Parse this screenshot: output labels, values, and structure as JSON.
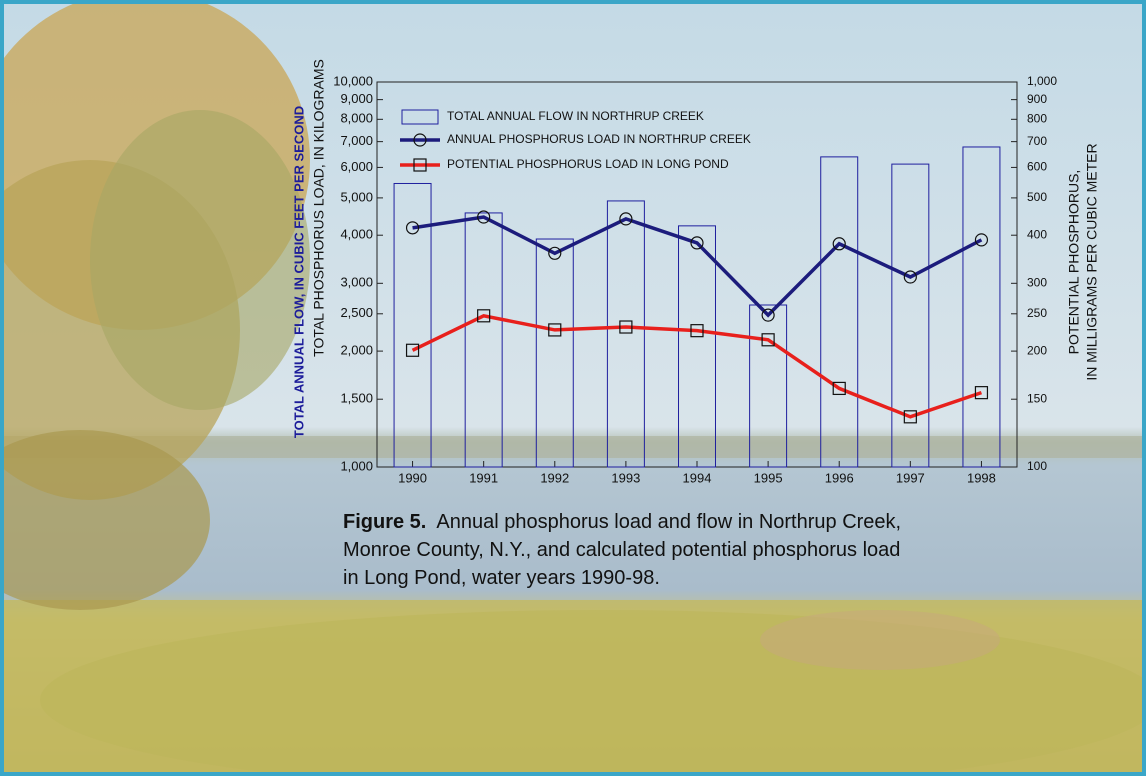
{
  "chart_data": {
    "type": "bar",
    "y_axis_label_outer": "TOTAL ANNUAL FLOW, IN CUBIC FEET PER SECOND",
    "y_axis_label": "TOTAL PHOSPHORUS LOAD, IN KILOGRAMS",
    "y2_axis_label": [
      "POTENTIAL PHOSPHORUS,",
      "IN MILLIGRAMS PER CUBIC METER"
    ],
    "figure_label": "Figure 5.",
    "caption_lines": [
      "Annual phosphorus load and flow in Northrup Creek,",
      "Monroe County, N.Y., and calculated potential phosphorus load",
      "in Long Pond, water years 1990-98."
    ],
    "categories": [
      "1990",
      "1991",
      "1992",
      "1993",
      "1994",
      "1995",
      "1996",
      "1997",
      "1998"
    ],
    "log_scale": true,
    "ylim": [
      1000,
      10000
    ],
    "yticks": [
      {
        "value": 1000,
        "label": "1,000"
      },
      {
        "value": 1500,
        "label": "1,500"
      },
      {
        "value": 2000,
        "label": "2,000"
      },
      {
        "value": 2500,
        "label": "2,500"
      },
      {
        "value": 3000,
        "label": "3,000"
      },
      {
        "value": 4000,
        "label": "4,000"
      },
      {
        "value": 5000,
        "label": "5,000"
      },
      {
        "value": 6000,
        "label": "6,000"
      },
      {
        "value": 7000,
        "label": "7,000"
      },
      {
        "value": 8000,
        "label": "8,000"
      },
      {
        "value": 9000,
        "label": "9,000"
      },
      {
        "value": 10000,
        "label": "10,000"
      }
    ],
    "y2lim": [
      100,
      1000
    ],
    "y2ticks": [
      100,
      150,
      200,
      250,
      300,
      400,
      500,
      600,
      700,
      800,
      900,
      {
        "value": 1000,
        "label": "1,000"
      }
    ],
    "series": [
      {
        "name": "TOTAL ANNUAL FLOW IN NORTHRUP CREEK",
        "type": "bar",
        "color": "#1f1f9e",
        "values": [
          5450,
          4570,
          3910,
          4910,
          4230,
          2635,
          6390,
          6120,
          6780
        ]
      },
      {
        "name": "ANNUAL PHOSPHORUS LOAD IN NORTHRUP CREEK",
        "type": "line",
        "marker": "circle",
        "color": "#1c1c7c",
        "values": [
          4180,
          4460,
          3590,
          4410,
          3820,
          2480,
          3800,
          3115,
          3890
        ]
      },
      {
        "name": "POTENTIAL PHOSPHORUS LOAD IN LONG POND",
        "type": "line",
        "marker": "square",
        "axis": "y2",
        "color": "#e8201c",
        "values": [
          201,
          247,
          227,
          231,
          226,
          214,
          160,
          135,
          156
        ]
      }
    ]
  }
}
